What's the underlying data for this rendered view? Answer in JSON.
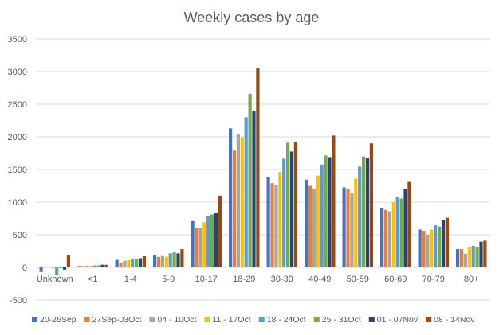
{
  "chart_data": {
    "type": "bar",
    "title": "Weekly cases by age",
    "xlabel": "",
    "ylabel": "",
    "ylim": [
      -500,
      3500
    ],
    "yticks": [
      3500,
      3000,
      2500,
      2000,
      1500,
      1000,
      500,
      0,
      -500
    ],
    "grid": true,
    "legend_position": "bottom",
    "categories": [
      "Unknown",
      "<1",
      "1-4",
      "5-9",
      "10-17",
      "18-29",
      "30-39",
      "40-49",
      "50-59",
      "60-69",
      "70-79",
      "80+"
    ],
    "series": [
      {
        "name": "20-26Sep",
        "color": "#4472c4",
        "values": [
          -70,
          20,
          115,
          195,
          710,
          2130,
          1385,
          1345,
          1225,
          910,
          580,
          280
        ]
      },
      {
        "name": "27Sep-03Oct",
        "color": "#ed7d31",
        "values": [
          15,
          20,
          75,
          160,
          600,
          1790,
          1290,
          1250,
          1200,
          880,
          560,
          280
        ]
      },
      {
        "name": "04 - 10Oct",
        "color": "#a5a5a5",
        "values": [
          10,
          25,
          100,
          175,
          610,
          2035,
          1265,
          1210,
          1140,
          860,
          500,
          210
        ]
      },
      {
        "name": "11 - 17Oct",
        "color": "#ffc000",
        "values": [
          -15,
          25,
          110,
          165,
          690,
          1990,
          1460,
          1405,
          1360,
          1000,
          580,
          310
        ]
      },
      {
        "name": "18 - 24Oct",
        "color": "#5b9bd5",
        "values": [
          -110,
          30,
          125,
          215,
          790,
          2300,
          1665,
          1575,
          1545,
          1075,
          645,
          330
        ]
      },
      {
        "name": "25 - 31Oct",
        "color": "#70ad47",
        "values": [
          -10,
          30,
          125,
          230,
          810,
          2660,
          1910,
          1715,
          1700,
          1055,
          625,
          310
        ]
      },
      {
        "name": "01 - 07Nov",
        "color": "#264478",
        "values": [
          -35,
          40,
          140,
          215,
          830,
          2390,
          1775,
          1690,
          1680,
          1205,
          720,
          395
        ]
      },
      {
        "name": "08 - 14Nov",
        "color": "#9e480e",
        "values": [
          195,
          40,
          170,
          280,
          1100,
          3050,
          1920,
          2020,
          1900,
          1310,
          760,
          410
        ]
      }
    ]
  }
}
